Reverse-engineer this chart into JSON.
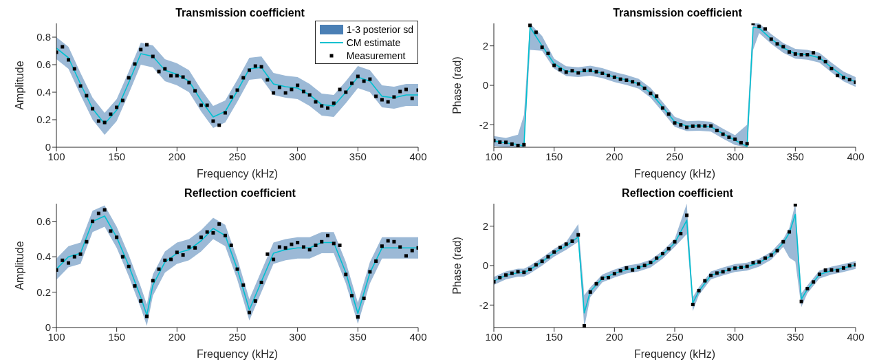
{
  "chart_data": [
    {
      "type": "line",
      "title": "Transmission coefficient",
      "xlabel": "Frequency (kHz)",
      "ylabel": "Amplitude",
      "xlim": [
        100,
        400
      ],
      "xticks": [
        100,
        150,
        200,
        250,
        300,
        350,
        400
      ],
      "ylim": [
        0,
        0.9
      ],
      "yticks": [
        0,
        0.2,
        0.4,
        0.6,
        0.8
      ],
      "legend": "top right",
      "annotations": [
        "1-3 posterior sd"
      ],
      "x": [
        100,
        105,
        110,
        115,
        120,
        125,
        130,
        135,
        140,
        145,
        150,
        155,
        160,
        165,
        170,
        175,
        180,
        185,
        190,
        195,
        200,
        205,
        210,
        215,
        220,
        225,
        230,
        235,
        240,
        245,
        250,
        255,
        260,
        265,
        270,
        275,
        280,
        285,
        290,
        295,
        300,
        305,
        310,
        315,
        320,
        325,
        330,
        335,
        340,
        345,
        350,
        355,
        360,
        365,
        370,
        375,
        380,
        385,
        390,
        395,
        400
      ],
      "series": [
        {
          "type": "line",
          "name": "CM estimate",
          "color": "#00c0d0",
          "x": [
            100,
            110,
            120,
            130,
            140,
            150,
            160,
            170,
            180,
            190,
            200,
            210,
            220,
            230,
            240,
            250,
            260,
            270,
            280,
            290,
            300,
            310,
            320,
            330,
            340,
            350,
            360,
            370,
            380,
            390,
            400
          ],
          "values": [
            0.72,
            0.65,
            0.46,
            0.28,
            0.17,
            0.27,
            0.47,
            0.68,
            0.66,
            0.56,
            0.53,
            0.48,
            0.34,
            0.22,
            0.26,
            0.41,
            0.57,
            0.58,
            0.46,
            0.44,
            0.43,
            0.38,
            0.31,
            0.3,
            0.4,
            0.51,
            0.48,
            0.37,
            0.36,
            0.38,
            0.38
          ],
          "lower": [
            0.64,
            0.57,
            0.38,
            0.2,
            0.09,
            0.19,
            0.39,
            0.6,
            0.58,
            0.48,
            0.45,
            0.4,
            0.26,
            0.14,
            0.18,
            0.33,
            0.49,
            0.5,
            0.38,
            0.36,
            0.35,
            0.3,
            0.23,
            0.22,
            0.32,
            0.43,
            0.4,
            0.29,
            0.28,
            0.3,
            0.3
          ],
          "upper": [
            0.8,
            0.73,
            0.54,
            0.36,
            0.25,
            0.35,
            0.55,
            0.76,
            0.74,
            0.64,
            0.61,
            0.56,
            0.42,
            0.3,
            0.34,
            0.49,
            0.65,
            0.66,
            0.54,
            0.52,
            0.51,
            0.46,
            0.39,
            0.38,
            0.48,
            0.59,
            0.56,
            0.45,
            0.44,
            0.46,
            0.46
          ]
        },
        {
          "type": "scatter",
          "name": "Measurement",
          "color": "#000000",
          "marker": "square",
          "values": [
            0.69,
            0.73,
            0.635,
            0.57,
            0.445,
            0.375,
            0.28,
            0.19,
            0.18,
            0.24,
            0.29,
            0.34,
            0.505,
            0.605,
            0.71,
            0.745,
            0.66,
            0.55,
            0.57,
            0.52,
            0.52,
            0.51,
            0.47,
            0.41,
            0.305,
            0.305,
            0.19,
            0.16,
            0.25,
            0.365,
            0.415,
            0.505,
            0.56,
            0.59,
            0.585,
            0.49,
            0.395,
            0.435,
            0.395,
            0.42,
            0.45,
            0.405,
            0.38,
            0.33,
            0.3,
            0.285,
            0.32,
            0.42,
            0.4,
            0.465,
            0.515,
            0.48,
            0.495,
            0.37,
            0.345,
            0.33,
            0.365,
            0.405,
            0.42,
            0.355,
            0.415
          ]
        }
      ]
    },
    {
      "type": "line",
      "title": "Transmission coefficient",
      "xlabel": "Frequency (kHz)",
      "ylabel": "Phase (rad)",
      "xlim": [
        100,
        400
      ],
      "xticks": [
        100,
        150,
        200,
        250,
        300,
        350,
        400
      ],
      "ylim": [
        -3.14,
        3.14
      ],
      "yticks": [
        -2,
        0,
        2
      ],
      "x": [
        100,
        105,
        110,
        115,
        120,
        125,
        130,
        135,
        140,
        145,
        150,
        155,
        160,
        165,
        170,
        175,
        180,
        185,
        190,
        195,
        200,
        205,
        210,
        215,
        220,
        225,
        230,
        235,
        240,
        245,
        250,
        255,
        260,
        265,
        270,
        275,
        280,
        285,
        290,
        295,
        300,
        305,
        310,
        315,
        320,
        325,
        330,
        335,
        340,
        345,
        350,
        355,
        360,
        365,
        370,
        375,
        380,
        385,
        390,
        395,
        400
      ],
      "series": [
        {
          "type": "line",
          "color": "#00c0d0",
          "x": [
            100,
            110,
            120,
            125,
            130,
            140,
            150,
            160,
            170,
            180,
            190,
            200,
            210,
            220,
            230,
            240,
            250,
            260,
            270,
            280,
            290,
            300,
            310,
            315,
            320,
            330,
            340,
            350,
            360,
            370,
            380,
            390,
            400
          ],
          "values": [
            -2.82,
            -2.92,
            -3.0,
            -3.08,
            2.95,
            2.0,
            1.1,
            0.72,
            0.67,
            0.74,
            0.62,
            0.42,
            0.27,
            0.08,
            -0.38,
            -1.1,
            -1.85,
            -2.07,
            -2.05,
            -2.1,
            -2.45,
            -2.78,
            -3.1,
            2.95,
            2.9,
            2.35,
            1.9,
            1.6,
            1.55,
            1.4,
            0.9,
            0.45,
            0.17
          ],
          "lower": [
            -3.07,
            -3.14,
            -3.14,
            -3.14,
            1.8,
            1.75,
            0.85,
            0.47,
            0.42,
            0.49,
            0.37,
            0.17,
            0.02,
            -0.17,
            -0.63,
            -1.35,
            -2.1,
            -2.32,
            -2.3,
            -2.35,
            -2.7,
            -3.03,
            -3.14,
            1.8,
            2.65,
            2.1,
            1.65,
            1.35,
            1.3,
            1.15,
            0.65,
            0.2,
            -0.08
          ],
          "upper": [
            -2.57,
            -2.67,
            -2.5,
            -1.5,
            3.14,
            2.5,
            1.35,
            0.97,
            0.92,
            0.99,
            0.87,
            0.67,
            0.52,
            0.33,
            -0.13,
            -0.85,
            -1.6,
            -1.82,
            -1.8,
            -1.85,
            -2.2,
            -2.53,
            -2.0,
            3.14,
            3.14,
            2.6,
            2.15,
            1.85,
            1.8,
            1.65,
            1.15,
            0.7,
            0.42
          ]
        },
        {
          "type": "scatter",
          "color": "#000000",
          "marker": "square",
          "values": [
            -2.8,
            -2.88,
            -2.89,
            -2.98,
            -3.05,
            -3.01,
            3.04,
            2.69,
            1.93,
            1.62,
            1.01,
            0.8,
            0.67,
            0.74,
            0.63,
            0.76,
            0.76,
            0.69,
            0.61,
            0.5,
            0.41,
            0.31,
            0.26,
            0.18,
            0.07,
            -0.15,
            -0.41,
            -0.55,
            -1.15,
            -1.46,
            -1.91,
            -2.01,
            -2.13,
            -2.07,
            -2.06,
            -2.06,
            -2.06,
            -2.29,
            -2.48,
            -2.63,
            -2.73,
            -2.91,
            -2.96,
            3.14,
            2.99,
            2.86,
            2.34,
            2.1,
            1.96,
            1.69,
            1.59,
            1.55,
            1.55,
            1.65,
            1.39,
            1.2,
            0.85,
            0.5,
            0.39,
            0.29,
            0.16
          ]
        }
      ]
    },
    {
      "type": "line",
      "title": "Reflection coefficient",
      "xlabel": "Frequency (kHz)",
      "ylabel": "Amplitude",
      "xlim": [
        100,
        400
      ],
      "xticks": [
        100,
        150,
        200,
        250,
        300,
        350,
        400
      ],
      "ylim": [
        0,
        0.7
      ],
      "yticks": [
        0,
        0.2,
        0.4,
        0.6
      ],
      "x": [
        100,
        105,
        110,
        115,
        120,
        125,
        130,
        135,
        140,
        145,
        150,
        155,
        160,
        165,
        170,
        175,
        180,
        185,
        190,
        195,
        200,
        205,
        210,
        215,
        220,
        225,
        230,
        235,
        240,
        245,
        250,
        255,
        260,
        265,
        270,
        275,
        280,
        285,
        290,
        295,
        300,
        305,
        310,
        315,
        320,
        325,
        330,
        335,
        340,
        345,
        350,
        355,
        360,
        365,
        370,
        375,
        380,
        385,
        390,
        395,
        400
      ],
      "series": [
        {
          "type": "line",
          "color": "#00c0d0",
          "x": [
            100,
            110,
            120,
            130,
            140,
            150,
            160,
            170,
            175,
            180,
            190,
            200,
            210,
            220,
            230,
            240,
            250,
            260,
            270,
            280,
            290,
            300,
            310,
            320,
            330,
            340,
            350,
            360,
            370,
            380,
            390,
            400
          ],
          "values": [
            0.33,
            0.4,
            0.42,
            0.6,
            0.63,
            0.51,
            0.35,
            0.17,
            0.07,
            0.24,
            0.37,
            0.42,
            0.44,
            0.49,
            0.56,
            0.52,
            0.33,
            0.1,
            0.26,
            0.42,
            0.44,
            0.45,
            0.45,
            0.48,
            0.48,
            0.31,
            0.08,
            0.31,
            0.45,
            0.45,
            0.45,
            0.45
          ],
          "lower": [
            0.27,
            0.34,
            0.36,
            0.54,
            0.57,
            0.45,
            0.29,
            0.11,
            0.01,
            0.18,
            0.31,
            0.36,
            0.38,
            0.43,
            0.5,
            0.46,
            0.27,
            0.04,
            0.2,
            0.36,
            0.38,
            0.39,
            0.39,
            0.42,
            0.42,
            0.25,
            0.02,
            0.25,
            0.39,
            0.39,
            0.39,
            0.39
          ],
          "upper": [
            0.39,
            0.46,
            0.48,
            0.66,
            0.69,
            0.57,
            0.41,
            0.23,
            0.13,
            0.3,
            0.43,
            0.48,
            0.5,
            0.55,
            0.62,
            0.58,
            0.39,
            0.16,
            0.32,
            0.48,
            0.5,
            0.51,
            0.51,
            0.54,
            0.54,
            0.37,
            0.14,
            0.37,
            0.51,
            0.51,
            0.51,
            0.51
          ]
        },
        {
          "type": "scatter",
          "color": "#000000",
          "marker": "square",
          "values": [
            0.325,
            0.38,
            0.365,
            0.4,
            0.415,
            0.485,
            0.6,
            0.645,
            0.665,
            0.545,
            0.51,
            0.4,
            0.345,
            0.235,
            0.15,
            0.063,
            0.265,
            0.33,
            0.38,
            0.385,
            0.425,
            0.41,
            0.455,
            0.45,
            0.51,
            0.54,
            0.535,
            0.585,
            0.52,
            0.465,
            0.33,
            0.24,
            0.085,
            0.15,
            0.255,
            0.415,
            0.385,
            0.455,
            0.45,
            0.47,
            0.48,
            0.455,
            0.44,
            0.465,
            0.485,
            0.52,
            0.475,
            0.465,
            0.3,
            0.18,
            0.06,
            0.165,
            0.315,
            0.375,
            0.46,
            0.49,
            0.485,
            0.455,
            0.405,
            0.435,
            0.45
          ]
        }
      ]
    },
    {
      "type": "line",
      "title": "Reflection coefficient",
      "xlabel": "Frequency (kHz)",
      "ylabel": "Phase (rad)",
      "xlim": [
        100,
        400
      ],
      "xticks": [
        100,
        150,
        200,
        250,
        300,
        350,
        400
      ],
      "ylim": [
        -3.14,
        3.14
      ],
      "yticks": [
        -2,
        0,
        2
      ],
      "x": [
        100,
        105,
        110,
        115,
        120,
        125,
        130,
        135,
        140,
        145,
        150,
        155,
        160,
        165,
        170,
        175,
        180,
        185,
        190,
        195,
        200,
        205,
        210,
        215,
        220,
        225,
        230,
        235,
        240,
        245,
        250,
        255,
        260,
        265,
        270,
        275,
        280,
        285,
        290,
        295,
        300,
        305,
        310,
        315,
        320,
        325,
        330,
        335,
        340,
        345,
        350,
        355,
        360,
        365,
        370,
        375,
        380,
        385,
        390,
        395,
        400
      ],
      "series": [
        {
          "type": "line",
          "color": "#00c0d0",
          "x": [
            100,
            110,
            120,
            125,
            130,
            140,
            150,
            160,
            170,
            175,
            180,
            190,
            200,
            210,
            220,
            230,
            240,
            250,
            260,
            265,
            270,
            280,
            290,
            300,
            310,
            320,
            330,
            340,
            345,
            350,
            355,
            360,
            370,
            380,
            390,
            400
          ],
          "values": [
            -0.78,
            -0.5,
            -0.36,
            -0.36,
            -0.2,
            0.2,
            0.65,
            1.0,
            1.45,
            -2.4,
            -1.3,
            -0.65,
            -0.4,
            -0.2,
            -0.1,
            0.1,
            0.55,
            1.15,
            2.3,
            -1.9,
            -1.3,
            -0.5,
            -0.3,
            -0.12,
            -0.05,
            0.15,
            0.5,
            1.15,
            1.65,
            2.6,
            -1.7,
            -1.2,
            -0.45,
            -0.25,
            -0.12,
            0.03
          ],
          "lower": [
            -0.98,
            -0.7,
            -0.56,
            -0.56,
            -0.4,
            0.0,
            0.45,
            0.8,
            1.2,
            -3.14,
            -1.6,
            -0.85,
            -0.6,
            -0.4,
            -0.3,
            -0.1,
            0.35,
            0.95,
            1.6,
            -2.3,
            -1.5,
            -0.7,
            -0.5,
            -0.32,
            -0.25,
            -0.05,
            0.3,
            0.95,
            0.4,
            0.2,
            -2.1,
            -1.4,
            -0.65,
            -0.45,
            -0.32,
            -0.17
          ],
          "upper": [
            -0.58,
            -0.3,
            -0.16,
            -0.16,
            0.0,
            0.4,
            0.85,
            1.2,
            2.1,
            -1.5,
            -1.1,
            -0.45,
            -0.2,
            0.0,
            0.1,
            0.3,
            0.75,
            1.35,
            3.14,
            -1.6,
            -1.1,
            -0.3,
            -0.1,
            0.08,
            0.15,
            0.35,
            0.7,
            1.35,
            1.9,
            3.14,
            -1.4,
            -1.0,
            -0.25,
            -0.05,
            0.08,
            0.23
          ]
        },
        {
          "type": "scatter",
          "color": "#000000",
          "marker": "square",
          "values": [
            -0.82,
            -0.61,
            -0.48,
            -0.39,
            -0.31,
            -0.34,
            -0.19,
            0.04,
            0.22,
            0.45,
            0.69,
            0.92,
            1.09,
            1.24,
            1.56,
            -3.05,
            -1.34,
            -0.92,
            -0.64,
            -0.61,
            -0.41,
            -0.26,
            -0.12,
            -0.22,
            -0.09,
            0.01,
            0.16,
            0.38,
            0.61,
            0.86,
            1.21,
            1.62,
            2.55,
            -1.97,
            -1.27,
            -0.77,
            -0.5,
            -0.38,
            -0.31,
            -0.2,
            -0.13,
            -0.09,
            -0.04,
            0.15,
            0.18,
            0.38,
            0.53,
            0.76,
            1.21,
            1.71,
            3.08,
            -1.82,
            -1.17,
            -0.83,
            -0.44,
            -0.23,
            -0.22,
            -0.25,
            -0.12,
            0.0,
            0.04
          ]
        }
      ]
    }
  ]
}
